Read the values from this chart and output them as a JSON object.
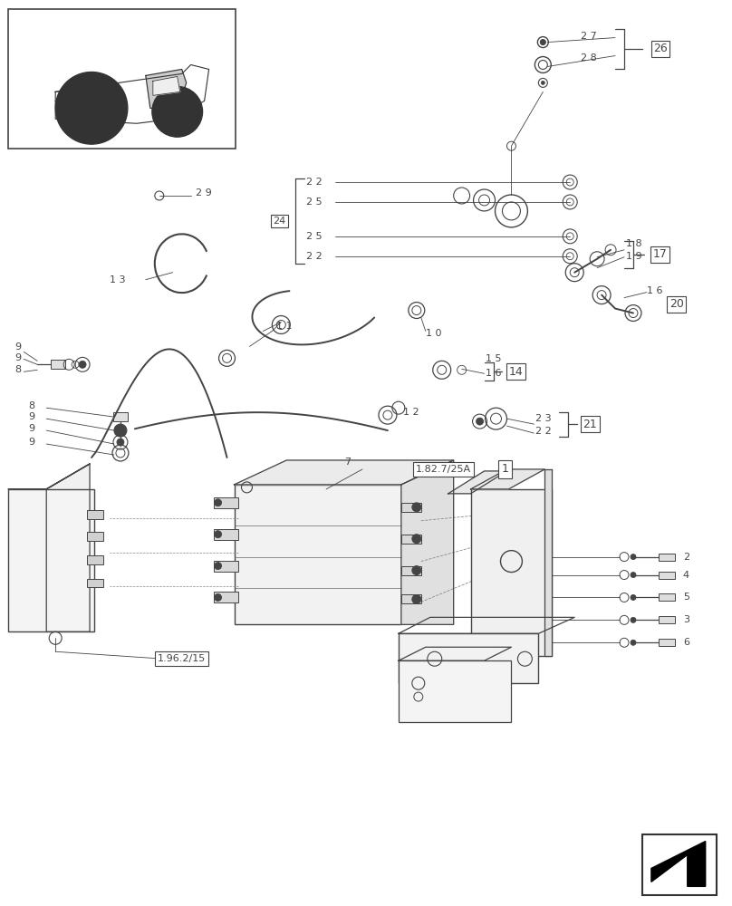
{
  "bg_color": "#ffffff",
  "lc": "#444444",
  "fig_width": 8.08,
  "fig_height": 10.0,
  "dpi": 100
}
